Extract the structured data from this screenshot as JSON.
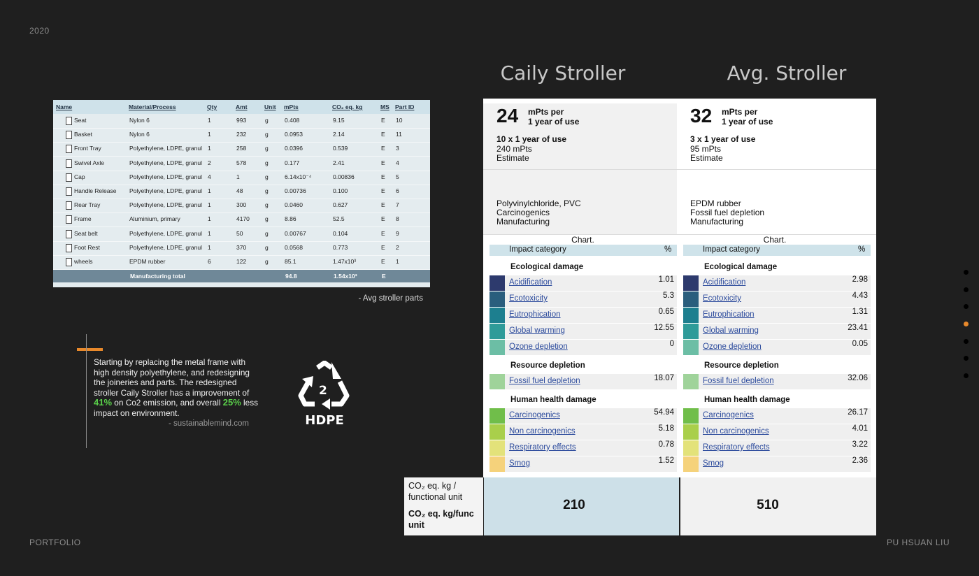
{
  "year": "2020",
  "footer_left": "PORTFOLIO",
  "footer_right": "PU HSUAN LIU",
  "parts_table": {
    "header": [
      "Name",
      "Material/Process",
      "Qty",
      "Amt",
      "Unit",
      "mPts",
      "CO₂ eq. kg",
      "MS",
      "Part ID"
    ],
    "rows": [
      [
        "Seat",
        "Nylon 6",
        "1",
        "993",
        "g",
        "0.408",
        "9.15",
        "E",
        "10"
      ],
      [
        "Basket",
        "Nylon 6",
        "1",
        "232",
        "g",
        "0.0953",
        "2.14",
        "E",
        "11"
      ],
      [
        "Front Tray",
        "Polyethylene, LDPE, granul",
        "1",
        "258",
        "g",
        "0.0396",
        "0.539",
        "E",
        "3"
      ],
      [
        "Swivel Axle",
        "Polyethylene, LDPE, granul",
        "2",
        "578",
        "g",
        "0.177",
        "2.41",
        "E",
        "4"
      ],
      [
        "Cap",
        "Polyethylene, LDPE, granul",
        "4",
        "1",
        "g",
        "6.14x10⁻⁴",
        "0.00836",
        "E",
        "5"
      ],
      [
        "Handle Release",
        "Polyethylene, LDPE, granul",
        "1",
        "48",
        "g",
        "0.00736",
        "0.100",
        "E",
        "6"
      ],
      [
        "Rear Tray",
        "Polyethylene, LDPE, granul",
        "1",
        "300",
        "g",
        "0.0460",
        "0.627",
        "E",
        "7"
      ],
      [
        "Frame",
        "Aluminium, primary",
        "1",
        "4170",
        "g",
        "8.86",
        "52.5",
        "E",
        "8"
      ],
      [
        "Seat belt",
        "Polyethylene, LDPE, granul",
        "1",
        "50",
        "g",
        "0.00767",
        "0.104",
        "E",
        "9"
      ],
      [
        "Foot Rest",
        "Polyethylene, LDPE, granul",
        "1",
        "370",
        "g",
        "0.0568",
        "0.773",
        "E",
        "2"
      ],
      [
        "wheels",
        "EPDM rubber",
        "6",
        "122",
        "g",
        "85.1",
        "1.47x10³",
        "E",
        "1"
      ]
    ],
    "total": {
      "label": "Manufacturing total",
      "mpts": "94.8",
      "co2": "1.54x10³",
      "ms": "E"
    },
    "caption": "- Avg stroller parts"
  },
  "note": {
    "segments": [
      {
        "text": "Starting by replacing the metal frame with high density polyethylene, and redesigning the joineries and parts. The redesigned stroller Caily Stroller has a improvement of "
      },
      {
        "text": "41%",
        "highlight": true
      },
      {
        "text": " on Co2 emission, and overall "
      },
      {
        "text": "25%",
        "highlight": true
      },
      {
        "text": " less impact on environment."
      }
    ],
    "source": "- sustainablemind.com"
  },
  "recycle_icon": {
    "number": "2",
    "label": "HDPE"
  },
  "comparison": {
    "chart_label": "Chart.",
    "table_header": [
      "Impact category",
      "%"
    ],
    "columns": [
      {
        "title": "Caily Stroller",
        "score": "24",
        "score_unit": "mPts per",
        "score_period": "1 year of use",
        "details": [
          "10 x 1 year of use",
          "240 mPts",
          "Estimate"
        ],
        "top_impacts": [
          "Polyvinylchloride, PVC",
          "Carcinogenics",
          "Manufacturing"
        ],
        "groups": [
          {
            "name": "Ecological damage",
            "items": [
              {
                "name": "Acidification",
                "value": "1.01",
                "color": "#2d3a6d"
              },
              {
                "name": "Ecotoxicity",
                "value": "5.3",
                "color": "#2a5e7d"
              },
              {
                "name": "Eutrophication",
                "value": "0.65",
                "color": "#1d7f8f"
              },
              {
                "name": "Global warming",
                "value": "12.55",
                "color": "#2e9b99"
              },
              {
                "name": "Ozone depletion",
                "value": "0",
                "color": "#6cbea5"
              }
            ]
          },
          {
            "name": "Resource depletion",
            "items": [
              {
                "name": "Fossil fuel depletion",
                "value": "18.07",
                "color": "#9fd39a"
              }
            ]
          },
          {
            "name": "Human health damage",
            "items": [
              {
                "name": "Carcinogenics",
                "value": "54.94",
                "color": "#70be4a"
              },
              {
                "name": "Non carcinogenics",
                "value": "5.18",
                "color": "#a9cf4b"
              },
              {
                "name": "Respiratory effects",
                "value": "0.78",
                "color": "#e3e27a"
              },
              {
                "name": "Smog",
                "value": "1.52",
                "color": "#f5d27b"
              }
            ]
          }
        ],
        "functional_value": "210"
      },
      {
        "title": "Avg. Stroller",
        "score": "32",
        "score_unit": "mPts per",
        "score_period": "1 year of use",
        "details": [
          "3 x 1 year of use",
          "95 mPts",
          "Estimate"
        ],
        "top_impacts": [
          "EPDM rubber",
          "Fossil fuel depletion",
          "Manufacturing"
        ],
        "groups": [
          {
            "name": "Ecological damage",
            "items": [
              {
                "name": "Acidification",
                "value": "2.98",
                "color": "#2d3a6d"
              },
              {
                "name": "Ecotoxicity",
                "value": "4.43",
                "color": "#2a5e7d"
              },
              {
                "name": "Eutrophication",
                "value": "1.31",
                "color": "#1d7f8f"
              },
              {
                "name": "Global warming",
                "value": "23.41",
                "color": "#2e9b99"
              },
              {
                "name": "Ozone depletion",
                "value": "0.05",
                "color": "#6cbea5"
              }
            ]
          },
          {
            "name": "Resource depletion",
            "items": [
              {
                "name": "Fossil fuel depletion",
                "value": "32.06",
                "color": "#9fd39a"
              }
            ]
          },
          {
            "name": "Human health damage",
            "items": [
              {
                "name": "Carcinogenics",
                "value": "26.17",
                "color": "#70be4a"
              },
              {
                "name": "Non carcinogenics",
                "value": "4.01",
                "color": "#a9cf4b"
              },
              {
                "name": "Respiratory effects",
                "value": "3.22",
                "color": "#e3e27a"
              },
              {
                "name": "Smog",
                "value": "2.36",
                "color": "#f5d27b"
              }
            ]
          }
        ],
        "functional_value": "510"
      }
    ],
    "functional_label": "CO₂ eq. kg / functional unit",
    "functional_label_bold": "CO₂ eq. kg/func unit"
  }
}
